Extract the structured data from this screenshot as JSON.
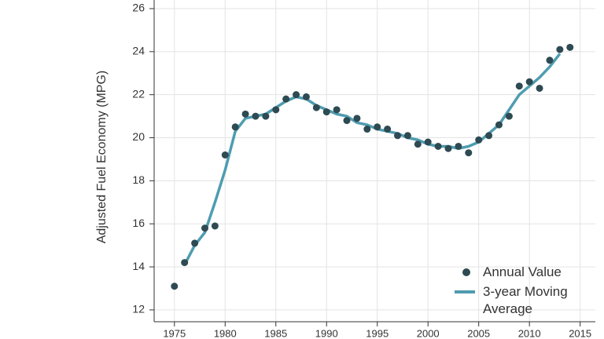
{
  "chart_data": {
    "type": "line",
    "y_label": "Adjusted Fuel Economy (MPG)",
    "x": [
      1975,
      1976,
      1977,
      1978,
      1979,
      1980,
      1981,
      1982,
      1983,
      1984,
      1985,
      1986,
      1987,
      1988,
      1989,
      1990,
      1991,
      1992,
      1993,
      1994,
      1995,
      1996,
      1997,
      1998,
      1999,
      2000,
      2001,
      2002,
      2003,
      2004,
      2005,
      2006,
      2007,
      2008,
      2009,
      2010,
      2011,
      2012,
      2013,
      2014
    ],
    "series": [
      {
        "name": "Annual Value",
        "mark": "dot",
        "color": "#2e4a52",
        "values": [
          13.1,
          14.2,
          15.1,
          15.8,
          15.9,
          19.2,
          20.5,
          21.1,
          21.0,
          21.0,
          21.3,
          21.8,
          22.0,
          21.9,
          21.4,
          21.2,
          21.3,
          20.8,
          20.9,
          20.4,
          20.5,
          20.4,
          20.1,
          20.1,
          19.7,
          19.8,
          19.6,
          19.5,
          19.6,
          19.3,
          19.9,
          20.1,
          20.6,
          21.0,
          22.4,
          22.6,
          22.3,
          23.6,
          24.1,
          24.2
        ]
      },
      {
        "name": "3-year Moving Average",
        "mark": "line",
        "color": "#4f9cb0",
        "values": [
          null,
          14.1,
          15.0,
          15.6,
          17.0,
          18.5,
          20.3,
          20.9,
          21.0,
          21.1,
          21.4,
          21.7,
          21.9,
          21.8,
          21.5,
          21.3,
          21.1,
          21.0,
          20.7,
          20.6,
          20.4,
          20.3,
          20.2,
          20.0,
          19.9,
          19.7,
          19.6,
          19.6,
          19.5,
          19.6,
          19.8,
          20.2,
          20.6,
          21.3,
          22.0,
          22.4,
          22.8,
          23.3,
          23.9,
          null
        ]
      }
    ],
    "xlim": [
      1973,
      2016.5
    ],
    "ylim": [
      11.45,
      26.4
    ],
    "xticks": [
      1975,
      1980,
      1985,
      1990,
      1995,
      2000,
      2005,
      2010,
      2015
    ],
    "yticks": [
      12,
      14,
      16,
      18,
      20,
      22,
      24,
      26
    ],
    "grid": true,
    "legend": "bottom-right"
  }
}
